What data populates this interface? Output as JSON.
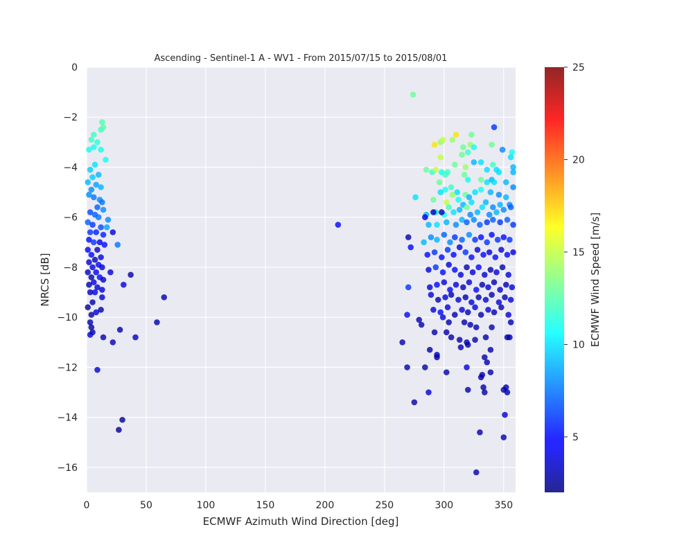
{
  "chart_data": {
    "type": "scatter",
    "title": "Ascending - Sentinel-1 A - WV1 - From 2015/07/15 to 2015/08/01",
    "xlabel": "ECMWF Azimuth Wind Direction [deg]",
    "ylabel": "NRCS [dB]",
    "xlim": [
      0,
      360
    ],
    "ylim": [
      -17,
      0
    ],
    "xticks": [
      0,
      50,
      100,
      150,
      200,
      250,
      300,
      350
    ],
    "yticks": [
      0,
      -2,
      -4,
      -6,
      -8,
      -10,
      -12,
      -14,
      -16
    ],
    "colorbar": {
      "label": "ECMWF Wind Speed [m/s]",
      "colormap": "jet",
      "range": [
        2,
        25
      ],
      "ticks": [
        5,
        10,
        15,
        20,
        25
      ]
    },
    "grid": true,
    "background": "#eaeaf2",
    "points": [
      [
        274,
        -1.1,
        13
      ],
      [
        13,
        -2.2,
        12.5
      ],
      [
        12,
        -2.5,
        12
      ],
      [
        14,
        -2.4,
        12.5
      ],
      [
        4,
        -2.9,
        12
      ],
      [
        6,
        -2.7,
        12
      ],
      [
        9,
        -3.0,
        11.5
      ],
      [
        6,
        -3.2,
        11
      ],
      [
        2,
        -3.3,
        11
      ],
      [
        12,
        -3.3,
        11
      ],
      [
        16,
        -3.7,
        11
      ],
      [
        7,
        -3.9,
        10
      ],
      [
        3,
        -4.1,
        9.5
      ],
      [
        10,
        -4.3,
        9
      ],
      [
        5,
        -4.4,
        9.5
      ],
      [
        1,
        -4.6,
        9
      ],
      [
        8,
        -4.7,
        8.5
      ],
      [
        12,
        -4.8,
        9
      ],
      [
        4,
        -4.9,
        8
      ],
      [
        2,
        -5.1,
        8
      ],
      [
        6,
        -5.2,
        7.5
      ],
      [
        11,
        -5.3,
        8
      ],
      [
        13,
        -5.4,
        7.5
      ],
      [
        9,
        -5.6,
        7
      ],
      [
        14,
        -5.7,
        8
      ],
      [
        3,
        -5.8,
        6.5
      ],
      [
        7,
        -5.9,
        7
      ],
      [
        10,
        -6.0,
        7.5
      ],
      [
        18,
        -6.1,
        8
      ],
      [
        1,
        -6.2,
        7
      ],
      [
        5,
        -6.3,
        6
      ],
      [
        12,
        -6.4,
        6.5
      ],
      [
        17,
        -6.4,
        8.5
      ],
      [
        3,
        -6.6,
        6
      ],
      [
        8,
        -6.6,
        5.5
      ],
      [
        22,
        -6.6,
        4
      ],
      [
        14,
        -6.7,
        5.5
      ],
      [
        2,
        -6.9,
        5
      ],
      [
        6,
        -7.0,
        6
      ],
      [
        11,
        -7.0,
        4.5
      ],
      [
        15,
        -7.1,
        5
      ],
      [
        26,
        -7.1,
        7.5
      ],
      [
        1,
        -7.3,
        4.5
      ],
      [
        9,
        -7.3,
        3.5
      ],
      [
        4,
        -7.5,
        5
      ],
      [
        12,
        -7.6,
        4
      ],
      [
        7,
        -7.7,
        3
      ],
      [
        2,
        -7.8,
        4
      ],
      [
        10,
        -7.9,
        5
      ],
      [
        5,
        -8.0,
        4
      ],
      [
        13,
        -8.0,
        3.5
      ],
      [
        1,
        -8.2,
        3.5
      ],
      [
        8,
        -8.2,
        4.5
      ],
      [
        20,
        -8.2,
        4
      ],
      [
        37,
        -8.3,
        3
      ],
      [
        4,
        -8.4,
        3
      ],
      [
        11,
        -8.4,
        5
      ],
      [
        14,
        -8.5,
        3.5
      ],
      [
        6,
        -8.6,
        4
      ],
      [
        2,
        -8.7,
        3
      ],
      [
        9,
        -8.8,
        4
      ],
      [
        31,
        -8.7,
        4
      ],
      [
        13,
        -8.9,
        4
      ],
      [
        3,
        -9.0,
        3.5
      ],
      [
        7,
        -9.0,
        4.5
      ],
      [
        13,
        -9.2,
        4
      ],
      [
        65,
        -9.2,
        3
      ],
      [
        5,
        -9.4,
        3
      ],
      [
        12,
        -9.7,
        3
      ],
      [
        1,
        -9.6,
        2.5
      ],
      [
        8,
        -9.8,
        4
      ],
      [
        4,
        -9.9,
        3
      ],
      [
        59,
        -10.2,
        3
      ],
      [
        3,
        -10.2,
        3
      ],
      [
        4,
        -10.4,
        2.5
      ],
      [
        28,
        -10.5,
        3
      ],
      [
        5,
        -10.6,
        3
      ],
      [
        3,
        -10.7,
        4
      ],
      [
        14,
        -10.8,
        3
      ],
      [
        41,
        -10.8,
        3.5
      ],
      [
        22,
        -11.0,
        3.5
      ],
      [
        9,
        -12.1,
        4
      ],
      [
        30,
        -14.1,
        2.5
      ],
      [
        27,
        -14.5,
        2.5
      ],
      [
        211,
        -6.3,
        5
      ],
      [
        342,
        -2.4,
        6
      ],
      [
        310,
        -2.7,
        17
      ],
      [
        292,
        -3.1,
        17
      ],
      [
        297,
        -3.0,
        14
      ],
      [
        299,
        -2.9,
        15
      ],
      [
        307,
        -2.9,
        14
      ],
      [
        323,
        -2.7,
        13
      ],
      [
        322,
        -3.1,
        14
      ],
      [
        325,
        -3.2,
        11
      ],
      [
        316,
        -3.2,
        13
      ],
      [
        340,
        -3.1,
        13
      ],
      [
        349,
        -3.3,
        8
      ],
      [
        357,
        -3.4,
        11
      ],
      [
        315,
        -3.5,
        13
      ],
      [
        320,
        -3.4,
        12
      ],
      [
        356,
        -3.6,
        10
      ],
      [
        297,
        -3.6,
        15
      ],
      [
        309,
        -3.9,
        13
      ],
      [
        325,
        -3.8,
        9
      ],
      [
        331,
        -3.8,
        10
      ],
      [
        341,
        -3.9,
        12
      ],
      [
        344,
        -4.1,
        10
      ],
      [
        336,
        -4.1,
        10
      ],
      [
        346,
        -4.2,
        10
      ],
      [
        358,
        -4.0,
        9
      ],
      [
        358,
        -4.2,
        9
      ],
      [
        285,
        -4.1,
        13
      ],
      [
        290,
        -4.2,
        12
      ],
      [
        293,
        -4.1,
        15
      ],
      [
        298,
        -4.2,
        11
      ],
      [
        301,
        -4.3,
        12
      ],
      [
        303,
        -4.2,
        12
      ],
      [
        317,
        -4.3,
        13
      ],
      [
        318,
        -4.0,
        14
      ],
      [
        320,
        -4.5,
        11
      ],
      [
        331,
        -4.5,
        13
      ],
      [
        336,
        -4.6,
        10
      ],
      [
        340,
        -4.5,
        9
      ],
      [
        342,
        -4.6,
        10
      ],
      [
        352,
        -4.6,
        9
      ],
      [
        296,
        -4.6,
        13
      ],
      [
        301,
        -4.9,
        11
      ],
      [
        306,
        -4.8,
        12
      ],
      [
        311,
        -5.0,
        10
      ],
      [
        318,
        -5.1,
        13
      ],
      [
        321,
        -5.2,
        9
      ],
      [
        326,
        -5.0,
        10
      ],
      [
        331,
        -4.9,
        11
      ],
      [
        339,
        -5.0,
        9
      ],
      [
        346,
        -5.1,
        8
      ],
      [
        352,
        -5.2,
        9
      ],
      [
        358,
        -4.8,
        8
      ],
      [
        276,
        -5.2,
        10
      ],
      [
        291,
        -5.3,
        13
      ],
      [
        297,
        -5.0,
        10
      ],
      [
        302,
        -5.4,
        15
      ],
      [
        307,
        -5.1,
        14
      ],
      [
        312,
        -5.3,
        11
      ],
      [
        316,
        -5.5,
        9
      ],
      [
        323,
        -5.4,
        10
      ],
      [
        335,
        -5.4,
        9
      ],
      [
        341,
        -5.6,
        8
      ],
      [
        347,
        -5.5,
        9
      ],
      [
        355,
        -5.5,
        8
      ],
      [
        285,
        -5.9,
        9
      ],
      [
        293,
        -5.8,
        10
      ],
      [
        300,
        -5.9,
        11
      ],
      [
        304,
        -5.6,
        12
      ],
      [
        308,
        -5.8,
        10
      ],
      [
        313,
        -5.7,
        9
      ],
      [
        319,
        -5.6,
        13
      ],
      [
        322,
        -5.9,
        8
      ],
      [
        328,
        -5.8,
        9
      ],
      [
        332,
        -5.6,
        10
      ],
      [
        338,
        -5.9,
        8
      ],
      [
        344,
        -5.8,
        9
      ],
      [
        350,
        -5.7,
        8
      ],
      [
        356,
        -5.6,
        7
      ],
      [
        284,
        -6.0,
        4
      ],
      [
        291,
        -5.8,
        3
      ],
      [
        298,
        -5.8,
        3
      ],
      [
        287,
        -6.3,
        9
      ],
      [
        294,
        -6.3,
        10
      ],
      [
        302,
        -6.2,
        9
      ],
      [
        310,
        -6.3,
        8
      ],
      [
        315,
        -6.1,
        9
      ],
      [
        319,
        -6.2,
        7
      ],
      [
        325,
        -6.1,
        8
      ],
      [
        330,
        -6.3,
        7
      ],
      [
        336,
        -6.2,
        6
      ],
      [
        341,
        -6.1,
        7
      ],
      [
        347,
        -6.2,
        6
      ],
      [
        353,
        -6.1,
        7
      ],
      [
        358,
        -6.3,
        6
      ],
      [
        283,
        -7.0,
        9
      ],
      [
        289,
        -6.8,
        8
      ],
      [
        294,
        -6.9,
        9
      ],
      [
        300,
        -6.7,
        7
      ],
      [
        305,
        -7.0,
        8
      ],
      [
        309,
        -6.8,
        6
      ],
      [
        315,
        -6.9,
        7
      ],
      [
        321,
        -6.7,
        8
      ],
      [
        326,
        -6.9,
        6
      ],
      [
        331,
        -6.8,
        5
      ],
      [
        336,
        -7.0,
        6
      ],
      [
        340,
        -6.7,
        5
      ],
      [
        345,
        -6.9,
        6
      ],
      [
        350,
        -6.8,
        5
      ],
      [
        355,
        -6.9,
        6
      ],
      [
        270,
        -6.8,
        3
      ],
      [
        272,
        -7.2,
        5
      ],
      [
        286,
        -7.5,
        5
      ],
      [
        292,
        -7.4,
        6
      ],
      [
        298,
        -7.6,
        5
      ],
      [
        303,
        -7.3,
        6
      ],
      [
        308,
        -7.5,
        5
      ],
      [
        313,
        -7.2,
        4
      ],
      [
        318,
        -7.4,
        6
      ],
      [
        323,
        -7.6,
        5
      ],
      [
        328,
        -7.3,
        4
      ],
      [
        333,
        -7.5,
        5
      ],
      [
        338,
        -7.4,
        4
      ],
      [
        343,
        -7.6,
        5
      ],
      [
        348,
        -7.3,
        4
      ],
      [
        353,
        -7.5,
        5
      ],
      [
        358,
        -7.4,
        4
      ],
      [
        287,
        -8.1,
        4
      ],
      [
        293,
        -8.0,
        6
      ],
      [
        299,
        -8.2,
        5
      ],
      [
        304,
        -7.9,
        4
      ],
      [
        309,
        -8.1,
        5
      ],
      [
        314,
        -8.3,
        4
      ],
      [
        319,
        -8.0,
        3
      ],
      [
        324,
        -8.2,
        4
      ],
      [
        329,
        -8.0,
        5
      ],
      [
        334,
        -8.3,
        4
      ],
      [
        339,
        -8.1,
        3
      ],
      [
        344,
        -8.2,
        4
      ],
      [
        349,
        -8.0,
        3
      ],
      [
        354,
        -8.3,
        4
      ],
      [
        270,
        -8.8,
        6
      ],
      [
        288,
        -8.8,
        4
      ],
      [
        294,
        -8.7,
        5
      ],
      [
        300,
        -8.6,
        4
      ],
      [
        305,
        -8.9,
        5
      ],
      [
        310,
        -8.7,
        4
      ],
      [
        316,
        -8.8,
        3
      ],
      [
        321,
        -8.6,
        4
      ],
      [
        327,
        -8.9,
        5
      ],
      [
        332,
        -8.7,
        3
      ],
      [
        337,
        -8.8,
        4
      ],
      [
        342,
        -8.6,
        3
      ],
      [
        347,
        -8.9,
        4
      ],
      [
        352,
        -8.7,
        3
      ],
      [
        357,
        -8.8,
        4
      ],
      [
        289,
        -9.1,
        4
      ],
      [
        295,
        -9.3,
        3
      ],
      [
        301,
        -9.2,
        4
      ],
      [
        306,
        -9.1,
        3
      ],
      [
        312,
        -9.3,
        4
      ],
      [
        318,
        -9.2,
        3
      ],
      [
        323,
        -9.4,
        4
      ],
      [
        329,
        -9.2,
        3
      ],
      [
        335,
        -9.3,
        4
      ],
      [
        340,
        -9.1,
        3
      ],
      [
        346,
        -9.4,
        4
      ],
      [
        351,
        -9.2,
        3
      ],
      [
        356,
        -9.3,
        4
      ],
      [
        291,
        -9.7,
        4
      ],
      [
        297,
        -9.8,
        5
      ],
      [
        303,
        -9.6,
        4
      ],
      [
        309,
        -9.9,
        3
      ],
      [
        315,
        -9.7,
        4
      ],
      [
        320,
        -9.8,
        3
      ],
      [
        326,
        -9.6,
        4
      ],
      [
        331,
        -9.9,
        3
      ],
      [
        337,
        -9.7,
        4
      ],
      [
        342,
        -9.8,
        3
      ],
      [
        348,
        -9.6,
        3
      ],
      [
        354,
        -9.9,
        4
      ],
      [
        269,
        -9.9,
        5
      ],
      [
        279,
        -10.1,
        3
      ],
      [
        281,
        -10.3,
        3
      ],
      [
        299,
        -10.0,
        4
      ],
      [
        304,
        -10.2,
        3
      ],
      [
        317,
        -10.2,
        3
      ],
      [
        322,
        -10.3,
        3
      ],
      [
        327,
        -10.4,
        3
      ],
      [
        340,
        -10.4,
        3
      ],
      [
        353,
        -10.8,
        3
      ],
      [
        356,
        -10.2,
        3
      ],
      [
        292,
        -10.6,
        3
      ],
      [
        302,
        -10.6,
        3
      ],
      [
        306,
        -10.8,
        3
      ],
      [
        313,
        -10.9,
        3
      ],
      [
        319,
        -11.0,
        3
      ],
      [
        326,
        -10.9,
        3
      ],
      [
        335,
        -10.8,
        3
      ],
      [
        265,
        -11.0,
        3
      ],
      [
        288,
        -11.3,
        3
      ],
      [
        294,
        -11.5,
        3
      ],
      [
        314,
        -11.2,
        3
      ],
      [
        320,
        -11.1,
        3
      ],
      [
        339,
        -11.3,
        3
      ],
      [
        355,
        -10.8,
        3
      ],
      [
        294,
        -11.6,
        3
      ],
      [
        334,
        -11.6,
        3
      ],
      [
        336,
        -11.8,
        3
      ],
      [
        269,
        -12.0,
        3
      ],
      [
        284,
        -12.0,
        3
      ],
      [
        302,
        -12.2,
        3
      ],
      [
        319,
        -12.0,
        4
      ],
      [
        339,
        -12.2,
        3
      ],
      [
        331,
        -12.4,
        3
      ],
      [
        332,
        -12.3,
        3
      ],
      [
        333,
        -12.8,
        3
      ],
      [
        334,
        -13.0,
        3
      ],
      [
        352,
        -12.8,
        3
      ],
      [
        350,
        -12.9,
        3
      ],
      [
        353,
        -13.0,
        3
      ],
      [
        287,
        -13.0,
        4
      ],
      [
        275,
        -13.4,
        3
      ],
      [
        320,
        -12.9,
        3
      ],
      [
        351,
        -13.9,
        4
      ],
      [
        330,
        -14.6,
        3
      ],
      [
        350,
        -14.8,
        3
      ],
      [
        327,
        -16.2,
        3
      ]
    ]
  }
}
